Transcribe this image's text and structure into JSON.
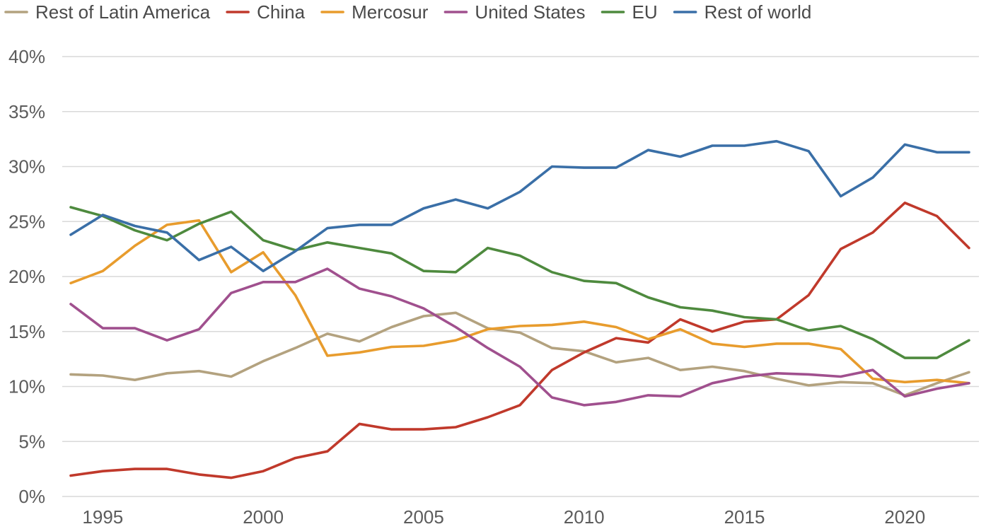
{
  "chart_data": {
    "type": "line",
    "title": "",
    "xlabel": "",
    "ylabel": "",
    "legend_position": "top",
    "grid": "horizontal",
    "x": [
      1994,
      1995,
      1996,
      1997,
      1998,
      1999,
      2000,
      2001,
      2002,
      2003,
      2004,
      2005,
      2006,
      2007,
      2008,
      2009,
      2010,
      2011,
      2012,
      2013,
      2014,
      2015,
      2016,
      2017,
      2018,
      2019,
      2020,
      2021,
      2022
    ],
    "xlim": [
      1994,
      2022
    ],
    "ylim": [
      0,
      40
    ],
    "y_unit": "%",
    "x_ticks": [
      "1995",
      "2000",
      "2005",
      "2010",
      "2015",
      "2020"
    ],
    "y_ticks": [
      "0%",
      "5%",
      "10%",
      "15%",
      "20%",
      "25%",
      "30%",
      "35%",
      "40%"
    ],
    "series": [
      {
        "name": "Rest of Latin America",
        "color": "#b3a27f",
        "values": [
          11.1,
          11.0,
          10.6,
          11.2,
          11.4,
          10.9,
          12.3,
          13.5,
          14.8,
          14.1,
          15.4,
          16.4,
          16.7,
          15.3,
          14.9,
          13.5,
          13.2,
          12.2,
          12.6,
          11.5,
          11.8,
          11.4,
          10.7,
          10.1,
          10.4,
          10.3,
          9.2,
          10.3,
          11.3
        ]
      },
      {
        "name": "China",
        "color": "#c0392b",
        "values": [
          1.9,
          2.3,
          2.5,
          2.5,
          2.0,
          1.7,
          2.3,
          3.5,
          4.1,
          6.6,
          6.1,
          6.1,
          6.3,
          7.2,
          8.3,
          11.5,
          13.1,
          14.4,
          14.0,
          16.1,
          15.0,
          15.9,
          16.1,
          18.3,
          22.5,
          24.0,
          26.7,
          25.5,
          22.6
        ]
      },
      {
        "name": "Mercosur",
        "color": "#e89c2d",
        "values": [
          19.4,
          20.5,
          22.8,
          24.7,
          25.1,
          20.4,
          22.2,
          18.3,
          12.8,
          13.1,
          13.6,
          13.7,
          14.2,
          15.2,
          15.5,
          15.6,
          15.9,
          15.4,
          14.3,
          15.2,
          13.9,
          13.6,
          13.9,
          13.9,
          13.4,
          10.7,
          10.4,
          10.6,
          10.3
        ]
      },
      {
        "name": "United States",
        "color": "#a0508e",
        "values": [
          17.5,
          15.3,
          15.3,
          14.2,
          15.2,
          18.5,
          19.5,
          19.5,
          20.7,
          18.9,
          18.2,
          17.1,
          15.4,
          13.5,
          11.8,
          9.0,
          8.3,
          8.6,
          9.2,
          9.1,
          10.3,
          10.9,
          11.2,
          11.1,
          10.9,
          11.5,
          9.1,
          9.8,
          10.3
        ]
      },
      {
        "name": "EU",
        "color": "#4e8a3e",
        "values": [
          26.3,
          25.5,
          24.2,
          23.3,
          24.8,
          25.9,
          23.3,
          22.4,
          23.1,
          22.6,
          22.1,
          20.5,
          20.4,
          22.6,
          21.9,
          20.4,
          19.6,
          19.4,
          18.1,
          17.2,
          16.9,
          16.3,
          16.1,
          15.1,
          15.5,
          14.3,
          12.6,
          12.6,
          14.2
        ]
      },
      {
        "name": "Rest of world",
        "color": "#3a6fa7",
        "values": [
          23.8,
          25.6,
          24.6,
          24.0,
          21.5,
          22.7,
          20.5,
          22.3,
          24.4,
          24.7,
          24.7,
          26.2,
          27.0,
          26.2,
          27.7,
          30.0,
          29.9,
          29.9,
          31.5,
          30.9,
          31.9,
          31.9,
          32.3,
          31.4,
          27.3,
          29.0,
          32.0,
          31.3,
          31.3
        ]
      }
    ]
  }
}
